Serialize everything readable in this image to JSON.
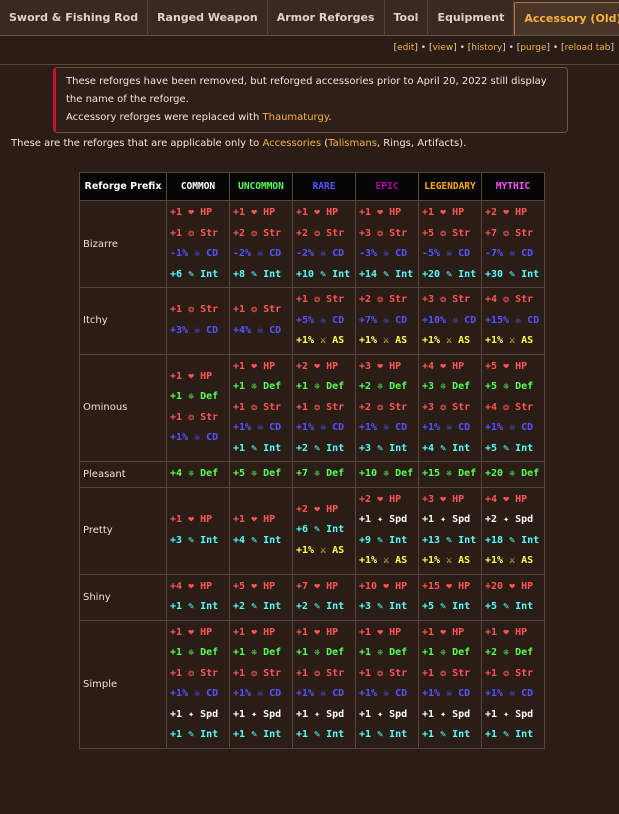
{
  "tabs": [
    {
      "label": "Sword & Fishing Rod",
      "active": false
    },
    {
      "label": "Ranged Weapon",
      "active": false
    },
    {
      "label": "Armor Reforges",
      "active": false
    },
    {
      "label": "Tool",
      "active": false
    },
    {
      "label": "Equipment",
      "active": false
    },
    {
      "label": "Accessory (Old)",
      "active": true
    }
  ],
  "links": {
    "edit": "edit",
    "view": "view",
    "history": "history",
    "purge": "purge",
    "reload": "reload tab"
  },
  "notice": {
    "line1": "These reforges have been removed, but reforged accessories prior to April 20, 2022 still display the name of the reforge.",
    "line2_prefix": "Accessory reforges were replaced with ",
    "line2_link": "Thaumaturgy",
    "line2_suffix": "."
  },
  "intro": {
    "prefix": "These are the reforges that are applicable only to ",
    "link1": "Accessories",
    "mid1": " (",
    "link2": "Talismans",
    "mid2": ", Rings, Artifacts).",
    "suffix": ""
  },
  "stat_colors": {
    "HP": "#ff5555",
    "Str": "#ff5555",
    "CD": "#5555ff",
    "Int": "#55ffff",
    "Def": "#55ff55",
    "AS": "#ffff55",
    "Spd": "#ffffff"
  },
  "stat_icons": {
    "HP": "heart-icon",
    "Str": "strength-icon",
    "CD": "crit-damage-icon",
    "Int": "intelligence-icon",
    "Def": "defense-icon",
    "AS": "attack-speed-icon",
    "Spd": "speed-icon"
  },
  "table": {
    "header_prefix": "Reforge Prefix",
    "rarities": [
      {
        "label": "COMMON",
        "color": "#ffffff"
      },
      {
        "label": "UNCOMMON",
        "color": "#55ff55"
      },
      {
        "label": "RARE",
        "color": "#5555ff"
      },
      {
        "label": "EPIC",
        "color": "#aa00aa"
      },
      {
        "label": "LEGENDARY",
        "color": "#ffaa00"
      },
      {
        "label": "MYTHIC",
        "color": "#ff55ff"
      }
    ],
    "rows": [
      {
        "name": "Bizarre",
        "cells": [
          [
            [
              "+1",
              "HP"
            ],
            [
              "+1",
              "Str"
            ],
            [
              "-1%",
              "CD"
            ],
            [
              "+6",
              "Int"
            ]
          ],
          [
            [
              "+1",
              "HP"
            ],
            [
              "+2",
              "Str"
            ],
            [
              "-2%",
              "CD"
            ],
            [
              "+8",
              "Int"
            ]
          ],
          [
            [
              "+1",
              "HP"
            ],
            [
              "+2",
              "Str"
            ],
            [
              "-2%",
              "CD"
            ],
            [
              "+10",
              "Int"
            ]
          ],
          [
            [
              "+1",
              "HP"
            ],
            [
              "+3",
              "Str"
            ],
            [
              "-3%",
              "CD"
            ],
            [
              "+14",
              "Int"
            ]
          ],
          [
            [
              "+1",
              "HP"
            ],
            [
              "+5",
              "Str"
            ],
            [
              "-5%",
              "CD"
            ],
            [
              "+20",
              "Int"
            ]
          ],
          [
            [
              "+2",
              "HP"
            ],
            [
              "+7",
              "Str"
            ],
            [
              "-7%",
              "CD"
            ],
            [
              "+30",
              "Int"
            ]
          ]
        ]
      },
      {
        "name": "Itchy",
        "cells": [
          [
            [
              "+1",
              "Str"
            ],
            [
              "+3%",
              "CD"
            ]
          ],
          [
            [
              "+1",
              "Str"
            ],
            [
              "+4%",
              "CD"
            ]
          ],
          [
            [
              "+1",
              "Str"
            ],
            [
              "+5%",
              "CD"
            ],
            [
              "+1%",
              "AS"
            ]
          ],
          [
            [
              "+2",
              "Str"
            ],
            [
              "+7%",
              "CD"
            ],
            [
              "+1%",
              "AS"
            ]
          ],
          [
            [
              "+3",
              "Str"
            ],
            [
              "+10%",
              "CD"
            ],
            [
              "+1%",
              "AS"
            ]
          ],
          [
            [
              "+4",
              "Str"
            ],
            [
              "+15%",
              "CD"
            ],
            [
              "+1%",
              "AS"
            ]
          ]
        ]
      },
      {
        "name": "Ominous",
        "cells": [
          [
            [
              "+1",
              "HP"
            ],
            [
              "+1",
              "Def"
            ],
            [
              "+1",
              "Str"
            ],
            [
              "+1%",
              "CD"
            ]
          ],
          [
            [
              "+1",
              "HP"
            ],
            [
              "+1",
              "Def"
            ],
            [
              "+1",
              "Str"
            ],
            [
              "+1%",
              "CD"
            ],
            [
              "+1",
              "Int"
            ]
          ],
          [
            [
              "+2",
              "HP"
            ],
            [
              "+1",
              "Def"
            ],
            [
              "+1",
              "Str"
            ],
            [
              "+1%",
              "CD"
            ],
            [
              "+2",
              "Int"
            ]
          ],
          [
            [
              "+3",
              "HP"
            ],
            [
              "+2",
              "Def"
            ],
            [
              "+2",
              "Str"
            ],
            [
              "+1%",
              "CD"
            ],
            [
              "+3",
              "Int"
            ]
          ],
          [
            [
              "+4",
              "HP"
            ],
            [
              "+3",
              "Def"
            ],
            [
              "+3",
              "Str"
            ],
            [
              "+1%",
              "CD"
            ],
            [
              "+4",
              "Int"
            ]
          ],
          [
            [
              "+5",
              "HP"
            ],
            [
              "+5",
              "Def"
            ],
            [
              "+4",
              "Str"
            ],
            [
              "+1%",
              "CD"
            ],
            [
              "+5",
              "Int"
            ]
          ]
        ]
      },
      {
        "name": "Pleasant",
        "cells": [
          [
            [
              "+4",
              "Def"
            ]
          ],
          [
            [
              "+5",
              "Def"
            ]
          ],
          [
            [
              "+7",
              "Def"
            ]
          ],
          [
            [
              "+10",
              "Def"
            ]
          ],
          [
            [
              "+15",
              "Def"
            ]
          ],
          [
            [
              "+20",
              "Def"
            ]
          ]
        ]
      },
      {
        "name": "Pretty",
        "cells": [
          [
            [
              "+1",
              "HP"
            ],
            [
              "+3",
              "Int"
            ]
          ],
          [
            [
              "+1",
              "HP"
            ],
            [
              "+4",
              "Int"
            ]
          ],
          [
            [
              "+2",
              "HP"
            ],
            [
              "+6",
              "Int"
            ],
            [
              "+1%",
              "AS"
            ]
          ],
          [
            [
              "+2",
              "HP"
            ],
            [
              "+1",
              "Spd"
            ],
            [
              "+9",
              "Int"
            ],
            [
              "+1%",
              "AS"
            ]
          ],
          [
            [
              "+3",
              "HP"
            ],
            [
              "+1",
              "Spd"
            ],
            [
              "+13",
              "Int"
            ],
            [
              "+1%",
              "AS"
            ]
          ],
          [
            [
              "+4",
              "HP"
            ],
            [
              "+2",
              "Spd"
            ],
            [
              "+18",
              "Int"
            ],
            [
              "+1%",
              "AS"
            ]
          ]
        ]
      },
      {
        "name": "Shiny",
        "cells": [
          [
            [
              "+4",
              "HP"
            ],
            [
              "+1",
              "Int"
            ]
          ],
          [
            [
              "+5",
              "HP"
            ],
            [
              "+2",
              "Int"
            ]
          ],
          [
            [
              "+7",
              "HP"
            ],
            [
              "+2",
              "Int"
            ]
          ],
          [
            [
              "+10",
              "HP"
            ],
            [
              "+3",
              "Int"
            ]
          ],
          [
            [
              "+15",
              "HP"
            ],
            [
              "+5",
              "Int"
            ]
          ],
          [
            [
              "+20",
              "HP"
            ],
            [
              "+5",
              "Int"
            ]
          ]
        ]
      },
      {
        "name": "Simple",
        "cells": [
          [
            [
              "+1",
              "HP"
            ],
            [
              "+1",
              "Def"
            ],
            [
              "+1",
              "Str"
            ],
            [
              "+1%",
              "CD"
            ],
            [
              "+1",
              "Spd"
            ],
            [
              "+1",
              "Int"
            ]
          ],
          [
            [
              "+1",
              "HP"
            ],
            [
              "+1",
              "Def"
            ],
            [
              "+1",
              "Str"
            ],
            [
              "+1%",
              "CD"
            ],
            [
              "+1",
              "Spd"
            ],
            [
              "+1",
              "Int"
            ]
          ],
          [
            [
              "+1",
              "HP"
            ],
            [
              "+1",
              "Def"
            ],
            [
              "+1",
              "Str"
            ],
            [
              "+1%",
              "CD"
            ],
            [
              "+1",
              "Spd"
            ],
            [
              "+1",
              "Int"
            ]
          ],
          [
            [
              "+1",
              "HP"
            ],
            [
              "+1",
              "Def"
            ],
            [
              "+1",
              "Str"
            ],
            [
              "+1%",
              "CD"
            ],
            [
              "+1",
              "Spd"
            ],
            [
              "+1",
              "Int"
            ]
          ],
          [
            [
              "+1",
              "HP"
            ],
            [
              "+1",
              "Def"
            ],
            [
              "+1",
              "Str"
            ],
            [
              "+1%",
              "CD"
            ],
            [
              "+1",
              "Spd"
            ],
            [
              "+1",
              "Int"
            ]
          ],
          [
            [
              "+1",
              "HP"
            ],
            [
              "+2",
              "Def"
            ],
            [
              "+1",
              "Str"
            ],
            [
              "+1%",
              "CD"
            ],
            [
              "+1",
              "Spd"
            ],
            [
              "+1",
              "Int"
            ]
          ]
        ]
      }
    ]
  }
}
